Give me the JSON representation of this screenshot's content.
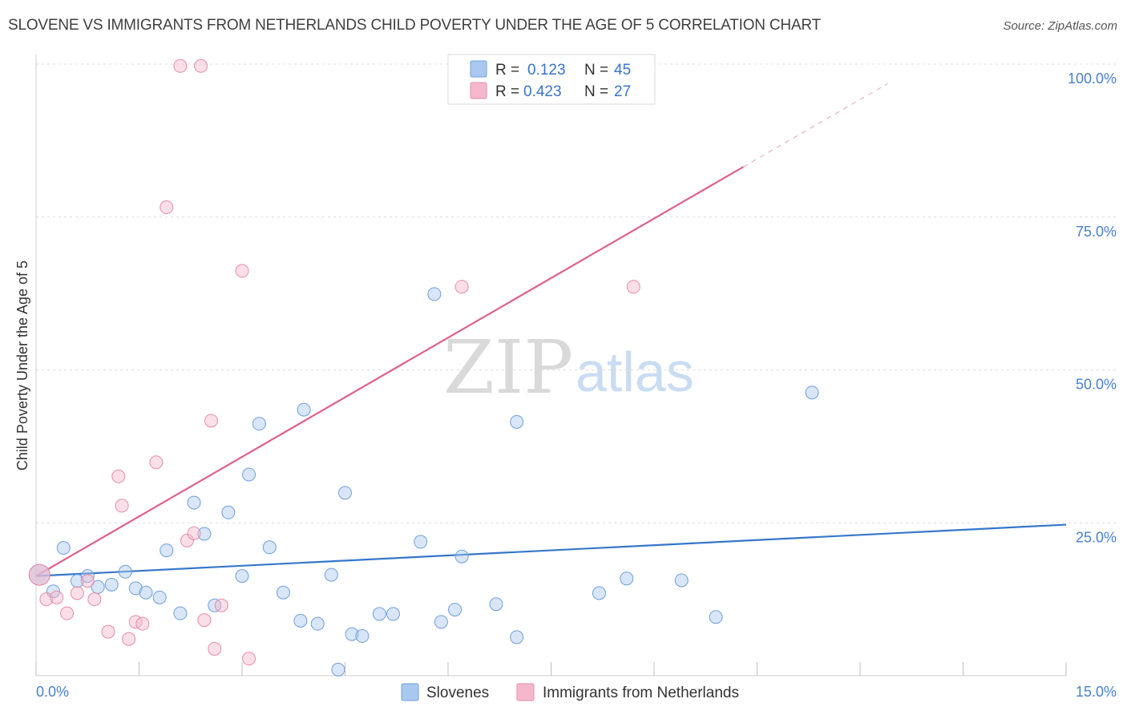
{
  "title": "SLOVENE VS IMMIGRANTS FROM NETHERLANDS CHILD POVERTY UNDER THE AGE OF 5 CORRELATION CHART",
  "source": "Source: ZipAtlas.com",
  "watermark": {
    "zip": "ZIP",
    "atlas": "atlas"
  },
  "legend": {
    "rows": [
      {
        "r_label": "R =",
        "r_value": "0.123",
        "n_label": "N =",
        "n_value": "45",
        "color": "#a9c8f0"
      },
      {
        "r_label": "R =",
        "r_value": "0.423",
        "n_label": "N =",
        "n_value": "27",
        "color": "#f5b8cb"
      }
    ]
  },
  "chart_data": {
    "type": "scatter",
    "title": "SLOVENE VS IMMIGRANTS FROM NETHERLANDS CHILD POVERTY UNDER THE AGE OF 5 CORRELATION CHART",
    "xlabel": "",
    "ylabel": "Child Poverty Under the Age of 5",
    "xlim": [
      0,
      15
    ],
    "ylim": [
      0,
      100
    ],
    "x_tick_labels": [
      "0.0%",
      "15.0%"
    ],
    "y_tick_labels": [
      "100.0%",
      "75.0%",
      "50.0%",
      "25.0%"
    ],
    "y_ticks": [
      100,
      75,
      50,
      25
    ],
    "grid": true,
    "legend_position": "top-center",
    "series": [
      {
        "name": "Slovenes",
        "color": "#a9c8f0",
        "stroke": "#6f9fdc",
        "line_color": "#3577cc",
        "trend": {
          "x": [
            0,
            15
          ],
          "y": [
            16.3,
            24.7
          ]
        },
        "points": [
          [
            0.05,
            16.5
          ],
          [
            0.25,
            13.8
          ],
          [
            0.4,
            20.9
          ],
          [
            0.6,
            15.5
          ],
          [
            0.75,
            16.3
          ],
          [
            0.9,
            14.5
          ],
          [
            1.1,
            14.9
          ],
          [
            1.3,
            17.0
          ],
          [
            1.45,
            14.3
          ],
          [
            1.6,
            13.6
          ],
          [
            1.8,
            12.8
          ],
          [
            1.9,
            20.5
          ],
          [
            2.1,
            10.2
          ],
          [
            2.3,
            28.3
          ],
          [
            2.45,
            23.2
          ],
          [
            2.6,
            11.5
          ],
          [
            2.8,
            26.7
          ],
          [
            3.0,
            16.3
          ],
          [
            3.1,
            32.9
          ],
          [
            3.25,
            41.2
          ],
          [
            3.4,
            21.0
          ],
          [
            3.6,
            13.6
          ],
          [
            3.85,
            9.0
          ],
          [
            3.9,
            43.5
          ],
          [
            4.1,
            8.5
          ],
          [
            4.3,
            16.5
          ],
          [
            4.4,
            1.0
          ],
          [
            4.5,
            29.9
          ],
          [
            4.6,
            6.8
          ],
          [
            4.75,
            6.5
          ],
          [
            5.0,
            10.1
          ],
          [
            5.2,
            10.1
          ],
          [
            5.6,
            21.9
          ],
          [
            5.8,
            62.4
          ],
          [
            5.9,
            8.8
          ],
          [
            6.1,
            10.8
          ],
          [
            6.2,
            19.5
          ],
          [
            6.7,
            11.7
          ],
          [
            7.0,
            41.5
          ],
          [
            7.0,
            6.3
          ],
          [
            8.2,
            13.5
          ],
          [
            8.6,
            15.9
          ],
          [
            9.4,
            15.6
          ],
          [
            9.9,
            9.6
          ],
          [
            11.3,
            46.3
          ]
        ]
      },
      {
        "name": "Immigrants from Netherlands",
        "color": "#f5b8cb",
        "stroke": "#e88aa9",
        "line_color": "#e0608c",
        "trend": {
          "x": [
            0,
            10.3
          ],
          "y": [
            16.3,
            83.2
          ]
        },
        "trend_dashed": {
          "x": [
            10.3,
            12.4
          ],
          "y": [
            83.2,
            96.8
          ]
        },
        "points": [
          [
            0.05,
            16.5
          ],
          [
            0.15,
            12.5
          ],
          [
            0.3,
            12.8
          ],
          [
            0.45,
            10.2
          ],
          [
            0.6,
            13.5
          ],
          [
            0.75,
            15.5
          ],
          [
            0.85,
            12.5
          ],
          [
            1.05,
            7.2
          ],
          [
            1.2,
            32.6
          ],
          [
            1.25,
            27.8
          ],
          [
            1.35,
            6.0
          ],
          [
            1.45,
            8.8
          ],
          [
            1.55,
            8.5
          ],
          [
            1.75,
            34.9
          ],
          [
            1.9,
            76.6
          ],
          [
            2.1,
            99.7
          ],
          [
            2.2,
            22.1
          ],
          [
            2.3,
            23.3
          ],
          [
            2.4,
            99.7
          ],
          [
            2.45,
            9.1
          ],
          [
            2.55,
            41.7
          ],
          [
            2.6,
            4.4
          ],
          [
            2.7,
            11.5
          ],
          [
            3.0,
            66.2
          ],
          [
            3.1,
            2.8
          ],
          [
            6.2,
            63.6
          ],
          [
            8.7,
            63.6
          ]
        ]
      }
    ]
  },
  "bottom_legend": [
    {
      "label": "Slovenes",
      "color": "#a9c8f0"
    },
    {
      "label": "Immigrants from Netherlands",
      "color": "#f5b8cb"
    }
  ]
}
